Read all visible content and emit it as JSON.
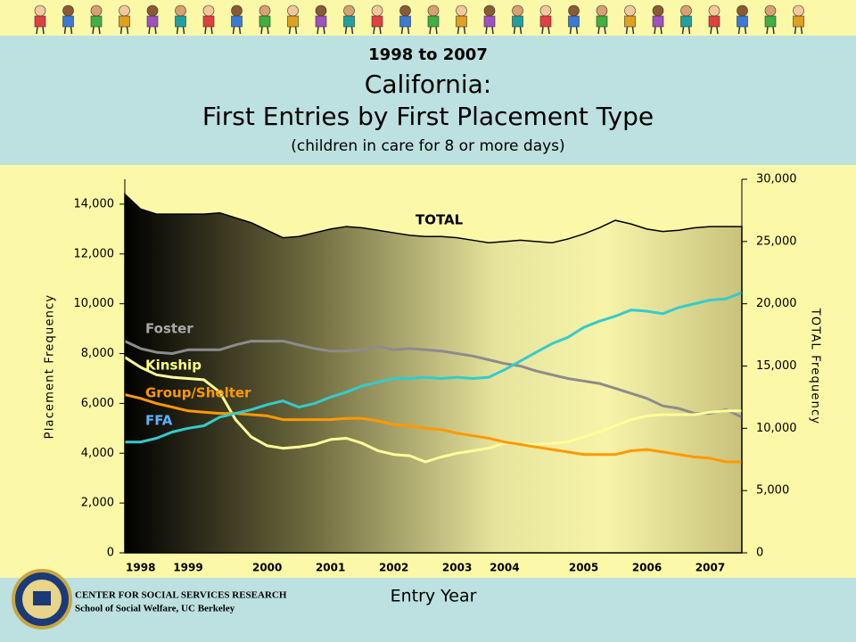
{
  "header": {
    "subtitle": "1998 to 2007",
    "title_line1": "California:",
    "title_line2": "First Entries by First Placement Type",
    "note": "(children in care for 8 or more days)"
  },
  "footer": {
    "org": "CENTER FOR SOCIAL SERVICES RESEARCH",
    "school": "School of Social Welfare, UC Berkeley"
  },
  "chart_data": {
    "type": "line",
    "xlabel": "Entry Year",
    "ylabel": "Placement Frequency",
    "y2label": "TOTAL Frequency",
    "categories": [
      null,
      "1998",
      null,
      null,
      "1999",
      null,
      null,
      null,
      null,
      "2000",
      null,
      null,
      null,
      "2001",
      null,
      null,
      null,
      "2002",
      null,
      null,
      null,
      "2003",
      null,
      null,
      "2004",
      null,
      null,
      null,
      null,
      "2005",
      null,
      null,
      null,
      "2006",
      null,
      null,
      null,
      "2007",
      null,
      null
    ],
    "ylim": [
      0,
      15000
    ],
    "yticks": [
      0,
      {
        "value": 2000,
        "label": "2,000"
      },
      {
        "value": 4000,
        "label": "4,000"
      },
      {
        "value": 6000,
        "label": "6,000"
      },
      {
        "value": 8000,
        "label": "8,000"
      },
      {
        "value": 10000,
        "label": "10,000"
      },
      {
        "value": 12000,
        "label": "12,000"
      },
      {
        "value": 14000,
        "label": "14,000"
      }
    ],
    "y2lim": [
      0,
      30000
    ],
    "y2ticks": [
      0,
      {
        "value": 5000,
        "label": "5,000"
      },
      {
        "value": 10000,
        "label": "10,000"
      },
      {
        "value": 15000,
        "label": "15,000"
      },
      {
        "value": 20000,
        "label": "20,000"
      },
      {
        "value": 25000,
        "label": "25,000"
      },
      {
        "value": 30000,
        "label": "30,000"
      }
    ],
    "series": [
      {
        "name": "TOTAL",
        "type": "area",
        "axis": "y2",
        "color": "#000000",
        "values": [
          28800,
          27600,
          27200,
          27200,
          27200,
          27200,
          27300,
          26900,
          26500,
          25900,
          25300,
          25400,
          25700,
          26000,
          26200,
          26100,
          25900,
          25700,
          25500,
          25400,
          25400,
          25300,
          25100,
          24900,
          25000,
          25100,
          25000,
          24900,
          25200,
          25600,
          26100,
          26700,
          26400,
          26000,
          25800,
          25900,
          26100,
          26200,
          26200,
          26200
        ]
      },
      {
        "name": "Foster",
        "color": "#8c8c8c",
        "values": [
          8500,
          8200,
          8050,
          8000,
          8150,
          8150,
          8150,
          8350,
          8500,
          8500,
          8500,
          8350,
          8200,
          8100,
          8100,
          8150,
          8300,
          8150,
          8200,
          8150,
          8100,
          8000,
          7900,
          7750,
          7600,
          7500,
          7300,
          7150,
          7000,
          6900,
          6800,
          6600,
          6400,
          6200,
          5900,
          5800,
          5600,
          5600,
          5750,
          5450
        ]
      },
      {
        "name": "Kinship",
        "color": "#ffff99",
        "values": [
          7850,
          7450,
          7150,
          7050,
          7000,
          6950,
          6450,
          5350,
          4650,
          4300,
          4200,
          4250,
          4350,
          4550,
          4600,
          4400,
          4100,
          3950,
          3900,
          3650,
          3850,
          4000,
          4100,
          4200,
          4400,
          4350,
          4350,
          4400,
          4450,
          4650,
          4850,
          5100,
          5350,
          5500,
          5550,
          5550,
          5550,
          5650,
          5700,
          5700
        ]
      },
      {
        "name": "Group/Shelter",
        "color": "#ff9900",
        "values": [
          6350,
          6200,
          6000,
          5850,
          5700,
          5650,
          5600,
          5600,
          5550,
          5500,
          5350,
          5350,
          5350,
          5350,
          5400,
          5400,
          5300,
          5150,
          5100,
          5000,
          4950,
          4800,
          4700,
          4600,
          4450,
          4350,
          4250,
          4150,
          4050,
          3950,
          3950,
          3950,
          4100,
          4150,
          4050,
          3950,
          3850,
          3800,
          3650,
          3650
        ]
      },
      {
        "name": "FFA",
        "color": "#33cccc",
        "values": [
          4450,
          4450,
          4600,
          4850,
          5000,
          5100,
          5450,
          5600,
          5750,
          5950,
          6100,
          5850,
          6000,
          6250,
          6450,
          6700,
          6850,
          7000,
          7000,
          7050,
          7000,
          7050,
          7000,
          7050,
          7350,
          7700,
          8050,
          8400,
          8650,
          9050,
          9300,
          9500,
          9750,
          9700,
          9600,
          9850,
          10000,
          10150,
          10200,
          10450
        ]
      }
    ]
  }
}
